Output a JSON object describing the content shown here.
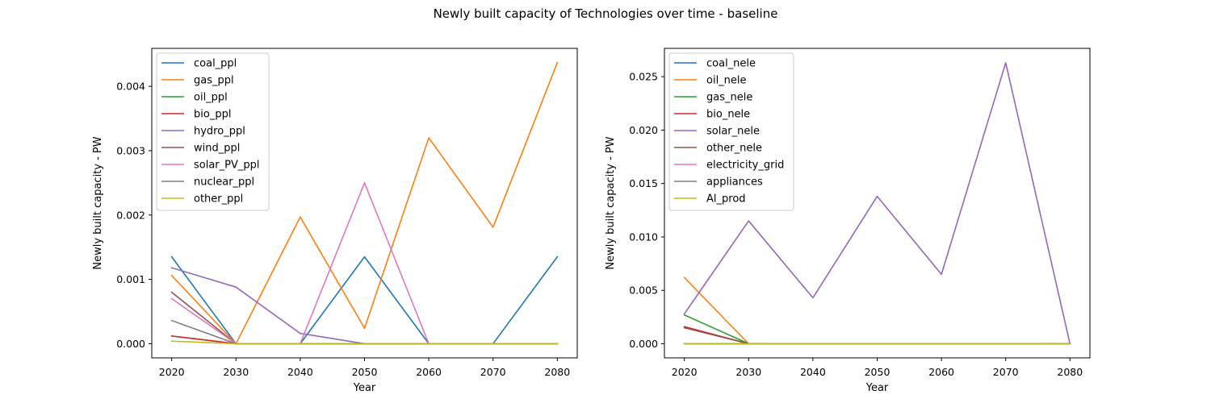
{
  "figure": {
    "title": "Newly built capacity of Technologies over time - baseline"
  },
  "chart_data": [
    {
      "type": "line",
      "xlabel": "Year",
      "ylabel": "Newly built capacity - PW",
      "x": [
        2020,
        2030,
        2040,
        2050,
        2060,
        2070,
        2080
      ],
      "xticks": [
        "2020",
        "2030",
        "2040",
        "2050",
        "2060",
        "2070",
        "2080"
      ],
      "yticks": [
        "0.000",
        "0.001",
        "0.002",
        "0.003",
        "0.004"
      ],
      "ytick_values": [
        0,
        0.001,
        0.002,
        0.003,
        0.004
      ],
      "xlim": [
        2016.9,
        2083.1
      ],
      "ylim": [
        -0.00022,
        0.00459
      ],
      "legend_position": "upper-left",
      "series": [
        {
          "name": "coal_ppl",
          "color": "#1f77b4",
          "values": [
            0.00135,
            0,
            0,
            0.00135,
            0,
            0,
            0.00135
          ]
        },
        {
          "name": "gas_ppl",
          "color": "#ff7f0e",
          "values": [
            0.00106,
            0,
            0.00197,
            0.00024,
            0.0032,
            0.00181,
            0.00437
          ]
        },
        {
          "name": "oil_ppl",
          "color": "#2ca02c",
          "values": [
            0.00012,
            0,
            0,
            0,
            0,
            0,
            0
          ]
        },
        {
          "name": "bio_ppl",
          "color": "#d62728",
          "values": [
            0.00012,
            0,
            0,
            0,
            0,
            0,
            0
          ]
        },
        {
          "name": "hydro_ppl",
          "color": "#9467bd",
          "values": [
            0.00118,
            0.00088,
            0.00016,
            0,
            0,
            0,
            0
          ]
        },
        {
          "name": "wind_ppl",
          "color": "#8c564b",
          "values": [
            0.0008,
            0,
            0,
            0,
            0,
            0,
            0
          ]
        },
        {
          "name": "solar_PV_ppl",
          "color": "#e377c2",
          "values": [
            0.0007,
            0,
            0,
            0.0025,
            0,
            0,
            0
          ]
        },
        {
          "name": "nuclear_ppl",
          "color": "#7f7f7f",
          "values": [
            0.00036,
            0,
            0,
            0,
            0,
            0,
            0
          ]
        },
        {
          "name": "other_ppl",
          "color": "#bcbd22",
          "values": [
            4e-05,
            0,
            0,
            0,
            0,
            0,
            0
          ]
        }
      ]
    },
    {
      "type": "line",
      "xlabel": "Year",
      "ylabel": "Newly built capacity - PW",
      "x": [
        2020,
        2030,
        2040,
        2050,
        2060,
        2070,
        2080
      ],
      "xticks": [
        "2020",
        "2030",
        "2040",
        "2050",
        "2060",
        "2070",
        "2080"
      ],
      "yticks": [
        "0.000",
        "0.005",
        "0.010",
        "0.015",
        "0.020",
        "0.025"
      ],
      "ytick_values": [
        0,
        0.005,
        0.01,
        0.015,
        0.02,
        0.025
      ],
      "xlim": [
        2016.9,
        2083.1
      ],
      "ylim": [
        -0.00132,
        0.02765
      ],
      "legend_position": "upper-left",
      "series": [
        {
          "name": "coal_nele",
          "color": "#1f77b4",
          "values": [
            0,
            0,
            0,
            0,
            0,
            0,
            0
          ]
        },
        {
          "name": "oil_nele",
          "color": "#ff7f0e",
          "values": [
            0.0062,
            0,
            0,
            0,
            0,
            0,
            0
          ]
        },
        {
          "name": "gas_nele",
          "color": "#2ca02c",
          "values": [
            0.0027,
            0,
            0,
            0,
            0,
            0,
            0
          ]
        },
        {
          "name": "bio_nele",
          "color": "#d62728",
          "values": [
            0.0016,
            0,
            0,
            0,
            0,
            0,
            0
          ]
        },
        {
          "name": "solar_nele",
          "color": "#9467bd",
          "values": [
            0.0028,
            0.0115,
            0.0043,
            0.0138,
            0.0065,
            0.0263,
            0
          ]
        },
        {
          "name": "other_nele",
          "color": "#8c564b",
          "values": [
            0.0015,
            0,
            0,
            0,
            0,
            0,
            0
          ]
        },
        {
          "name": "electricity_grid",
          "color": "#e377c2",
          "values": [
            0,
            0,
            0,
            0,
            0,
            0,
            0
          ]
        },
        {
          "name": "appliances",
          "color": "#7f7f7f",
          "values": [
            0,
            0,
            0,
            0,
            0,
            0,
            0
          ]
        },
        {
          "name": "Al_prod",
          "color": "#bcbd22",
          "values": [
            0,
            0,
            0,
            0,
            0,
            0,
            0
          ]
        }
      ]
    }
  ]
}
